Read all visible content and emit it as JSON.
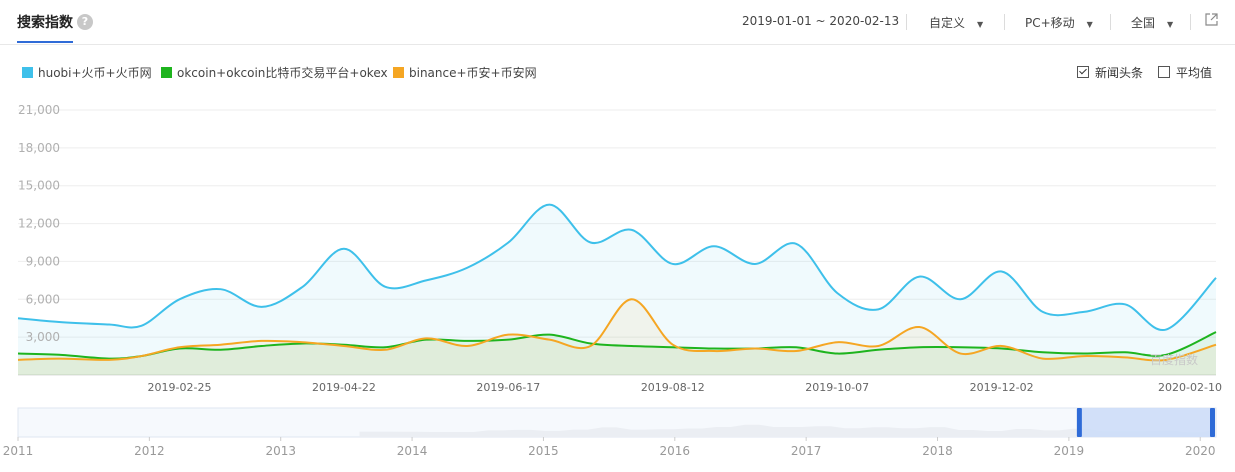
{
  "header": {
    "title": "搜索指数",
    "help_icon": "question-circle-icon",
    "date_range": "2019-01-01 ~ 2020-02-13",
    "custom_label": "自定义",
    "device_label": "PC+移动",
    "region_label": "全国",
    "export_icon": "external-link-icon"
  },
  "options": {
    "news_label": "新闻头条",
    "news_checked": true,
    "average_label": "平均值",
    "average_checked": false
  },
  "watermark": "百度指数",
  "colors": {
    "huobi": "#3ec0ea",
    "okcoin": "#1eb41e",
    "binance": "#f5a623",
    "accent": "#2f6bd7"
  },
  "chart_data": {
    "type": "line",
    "xlabel": "",
    "ylabel": "",
    "ylim": [
      0,
      21000
    ],
    "y_ticks": [
      "3,000",
      "6,000",
      "9,000",
      "12,000",
      "15,000",
      "18,000",
      "21,000"
    ],
    "x_ticks": [
      "2019-02-25",
      "2019-04-22",
      "2019-06-17",
      "2019-08-12",
      "2019-10-07",
      "2019-12-02",
      "2020-02-10"
    ],
    "xlim": [
      "2019-01-01",
      "2020-02-13"
    ],
    "grid": true,
    "legend_position": "top-left",
    "x": [
      "2019-01-01",
      "2019-01-15",
      "2019-02-01",
      "2019-02-12",
      "2019-02-25",
      "2019-03-11",
      "2019-03-25",
      "2019-04-08",
      "2019-04-22",
      "2019-05-06",
      "2019-05-20",
      "2019-06-03",
      "2019-06-17",
      "2019-07-01",
      "2019-07-15",
      "2019-07-29",
      "2019-08-12",
      "2019-08-26",
      "2019-09-09",
      "2019-09-23",
      "2019-10-07",
      "2019-10-21",
      "2019-11-04",
      "2019-11-18",
      "2019-12-02",
      "2019-12-16",
      "2019-12-30",
      "2020-01-13",
      "2020-01-27",
      "2020-02-13"
    ],
    "series": [
      {
        "name": "huobi+火币+火币网",
        "color": "#3ec0ea",
        "values": [
          4500,
          4200,
          4000,
          3900,
          6000,
          6800,
          5400,
          7000,
          10000,
          7000,
          7500,
          8500,
          10500,
          13500,
          10500,
          11500,
          8800,
          10200,
          8800,
          10400,
          6500,
          5200,
          7800,
          6000,
          8200,
          5000,
          5000,
          5600,
          3600,
          7700
        ]
      },
      {
        "name": "okcoin+okcoin比特币交易平台+okex",
        "color": "#1eb41e",
        "values": [
          1700,
          1600,
          1300,
          1500,
          2100,
          2000,
          2300,
          2500,
          2400,
          2200,
          2800,
          2700,
          2800,
          3200,
          2500,
          2300,
          2200,
          2100,
          2100,
          2200,
          1700,
          2000,
          2200,
          2200,
          2100,
          1800,
          1700,
          1800,
          1600,
          3400
        ]
      },
      {
        "name": "binance+币安+币安网",
        "color": "#f5a623",
        "values": [
          1200,
          1300,
          1200,
          1500,
          2200,
          2400,
          2700,
          2600,
          2300,
          2000,
          2900,
          2300,
          3200,
          2800,
          2300,
          6000,
          2400,
          1900,
          2100,
          1900,
          2600,
          2300,
          3800,
          1700,
          2300,
          1300,
          1500,
          1400,
          1200,
          2400
        ]
      }
    ],
    "navigator_years": [
      "2011",
      "2012",
      "2013",
      "2014",
      "2015",
      "2016",
      "2017",
      "2018",
      "2019",
      "2020"
    ]
  }
}
